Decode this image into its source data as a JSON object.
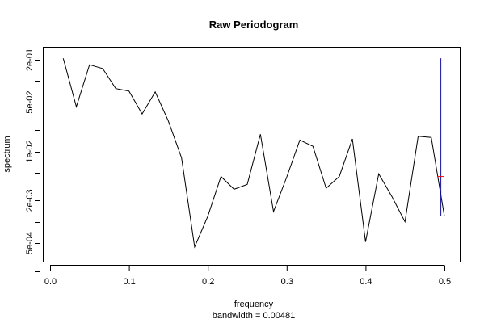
{
  "chart_data": {
    "type": "line",
    "title": "Raw Periodogram",
    "xlabel": "frequency",
    "ylabel": "spectrum",
    "sublabel": "bandwidth = 0.00481",
    "x_ticks": [
      "0.0",
      "0.1",
      "0.2",
      "0.3",
      "0.4",
      "0.5"
    ],
    "y_ticks": [
      "5e-04",
      "2e-03",
      "1e-02",
      "5e-02",
      "2e-01"
    ],
    "xlim": [
      0.0,
      0.5
    ],
    "ylog": true,
    "grid": false,
    "x": [
      0.0167,
      0.0333,
      0.05,
      0.0667,
      0.0833,
      0.1,
      0.1167,
      0.1333,
      0.15,
      0.1667,
      0.1833,
      0.2,
      0.2167,
      0.2333,
      0.25,
      0.2667,
      0.2833,
      0.3,
      0.3167,
      0.3333,
      0.35,
      0.3667,
      0.3833,
      0.4,
      0.4167,
      0.4333,
      0.45,
      0.4667,
      0.4833,
      0.5
    ],
    "y": [
      0.21,
      0.043,
      0.17,
      0.15,
      0.078,
      0.072,
      0.034,
      0.07,
      0.027,
      0.0081,
      0.00044,
      0.0012,
      0.0044,
      0.0029,
      0.0034,
      0.0175,
      0.0014,
      0.0043,
      0.0145,
      0.0118,
      0.003,
      0.0044,
      0.015,
      0.00052,
      0.0048,
      0.0023,
      0.001,
      0.0164,
      0.0158,
      0.0012
    ],
    "ci_bar": {
      "x": 0.4955,
      "lower": 0.0012,
      "upper": 0.21,
      "center": 0.0044,
      "color": "#0000ff",
      "center_color": "#ff0000"
    }
  }
}
